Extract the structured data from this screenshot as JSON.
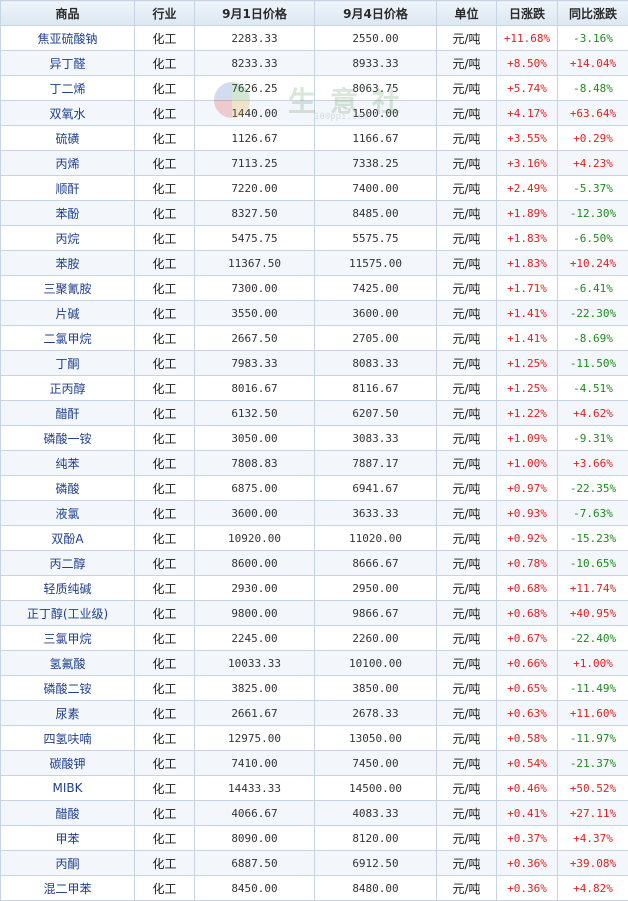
{
  "columns": [
    "商品",
    "行业",
    "9月1日价格",
    "9月4日价格",
    "单位",
    "日涨跌",
    "同比涨跌"
  ],
  "watermark": {
    "text": "生意社",
    "url": "100ppi.com"
  },
  "rows": [
    {
      "name": "焦亚硫酸钠",
      "industry": "化工",
      "price_0901": "2283.33",
      "price_0904": "2550.00",
      "unit": "元/吨",
      "daily_change": "+11.68%",
      "yoy_change": "-3.16%"
    },
    {
      "name": "异丁醛",
      "industry": "化工",
      "price_0901": "8233.33",
      "price_0904": "8933.33",
      "unit": "元/吨",
      "daily_change": "+8.50%",
      "yoy_change": "+14.04%"
    },
    {
      "name": "丁二烯",
      "industry": "化工",
      "price_0901": "7626.25",
      "price_0904": "8063.75",
      "unit": "元/吨",
      "daily_change": "+5.74%",
      "yoy_change": "-8.48%"
    },
    {
      "name": "双氧水",
      "industry": "化工",
      "price_0901": "1440.00",
      "price_0904": "1500.00",
      "unit": "元/吨",
      "daily_change": "+4.17%",
      "yoy_change": "+63.64%"
    },
    {
      "name": "硫磺",
      "industry": "化工",
      "price_0901": "1126.67",
      "price_0904": "1166.67",
      "unit": "元/吨",
      "daily_change": "+3.55%",
      "yoy_change": "+0.29%"
    },
    {
      "name": "丙烯",
      "industry": "化工",
      "price_0901": "7113.25",
      "price_0904": "7338.25",
      "unit": "元/吨",
      "daily_change": "+3.16%",
      "yoy_change": "+4.23%"
    },
    {
      "name": "顺酐",
      "industry": "化工",
      "price_0901": "7220.00",
      "price_0904": "7400.00",
      "unit": "元/吨",
      "daily_change": "+2.49%",
      "yoy_change": "-5.37%"
    },
    {
      "name": "苯酚",
      "industry": "化工",
      "price_0901": "8327.50",
      "price_0904": "8485.00",
      "unit": "元/吨",
      "daily_change": "+1.89%",
      "yoy_change": "-12.30%"
    },
    {
      "name": "丙烷",
      "industry": "化工",
      "price_0901": "5475.75",
      "price_0904": "5575.75",
      "unit": "元/吨",
      "daily_change": "+1.83%",
      "yoy_change": "-6.50%"
    },
    {
      "name": "苯胺",
      "industry": "化工",
      "price_0901": "11367.50",
      "price_0904": "11575.00",
      "unit": "元/吨",
      "daily_change": "+1.83%",
      "yoy_change": "+10.24%"
    },
    {
      "name": "三聚氰胺",
      "industry": "化工",
      "price_0901": "7300.00",
      "price_0904": "7425.00",
      "unit": "元/吨",
      "daily_change": "+1.71%",
      "yoy_change": "-6.41%"
    },
    {
      "name": "片碱",
      "industry": "化工",
      "price_0901": "3550.00",
      "price_0904": "3600.00",
      "unit": "元/吨",
      "daily_change": "+1.41%",
      "yoy_change": "-22.30%"
    },
    {
      "name": "二氯甲烷",
      "industry": "化工",
      "price_0901": "2667.50",
      "price_0904": "2705.00",
      "unit": "元/吨",
      "daily_change": "+1.41%",
      "yoy_change": "-8.69%"
    },
    {
      "name": "丁酮",
      "industry": "化工",
      "price_0901": "7983.33",
      "price_0904": "8083.33",
      "unit": "元/吨",
      "daily_change": "+1.25%",
      "yoy_change": "-11.50%"
    },
    {
      "name": "正丙醇",
      "industry": "化工",
      "price_0901": "8016.67",
      "price_0904": "8116.67",
      "unit": "元/吨",
      "daily_change": "+1.25%",
      "yoy_change": "-4.51%"
    },
    {
      "name": "醋酐",
      "industry": "化工",
      "price_0901": "6132.50",
      "price_0904": "6207.50",
      "unit": "元/吨",
      "daily_change": "+1.22%",
      "yoy_change": "+4.62%"
    },
    {
      "name": "磷酸一铵",
      "industry": "化工",
      "price_0901": "3050.00",
      "price_0904": "3083.33",
      "unit": "元/吨",
      "daily_change": "+1.09%",
      "yoy_change": "-9.31%"
    },
    {
      "name": "纯苯",
      "industry": "化工",
      "price_0901": "7808.83",
      "price_0904": "7887.17",
      "unit": "元/吨",
      "daily_change": "+1.00%",
      "yoy_change": "+3.66%"
    },
    {
      "name": "磷酸",
      "industry": "化工",
      "price_0901": "6875.00",
      "price_0904": "6941.67",
      "unit": "元/吨",
      "daily_change": "+0.97%",
      "yoy_change": "-22.35%"
    },
    {
      "name": "液氯",
      "industry": "化工",
      "price_0901": "3600.00",
      "price_0904": "3633.33",
      "unit": "元/吨",
      "daily_change": "+0.93%",
      "yoy_change": "-7.63%"
    },
    {
      "name": "双酚A",
      "industry": "化工",
      "price_0901": "10920.00",
      "price_0904": "11020.00",
      "unit": "元/吨",
      "daily_change": "+0.92%",
      "yoy_change": "-15.23%"
    },
    {
      "name": "丙二醇",
      "industry": "化工",
      "price_0901": "8600.00",
      "price_0904": "8666.67",
      "unit": "元/吨",
      "daily_change": "+0.78%",
      "yoy_change": "-10.65%"
    },
    {
      "name": "轻质纯碱",
      "industry": "化工",
      "price_0901": "2930.00",
      "price_0904": "2950.00",
      "unit": "元/吨",
      "daily_change": "+0.68%",
      "yoy_change": "+11.74%"
    },
    {
      "name": "正丁醇(工业级)",
      "industry": "化工",
      "price_0901": "9800.00",
      "price_0904": "9866.67",
      "unit": "元/吨",
      "daily_change": "+0.68%",
      "yoy_change": "+40.95%"
    },
    {
      "name": "三氯甲烷",
      "industry": "化工",
      "price_0901": "2245.00",
      "price_0904": "2260.00",
      "unit": "元/吨",
      "daily_change": "+0.67%",
      "yoy_change": "-22.40%"
    },
    {
      "name": "氢氟酸",
      "industry": "化工",
      "price_0901": "10033.33",
      "price_0904": "10100.00",
      "unit": "元/吨",
      "daily_change": "+0.66%",
      "yoy_change": "+1.00%"
    },
    {
      "name": "磷酸二铵",
      "industry": "化工",
      "price_0901": "3825.00",
      "price_0904": "3850.00",
      "unit": "元/吨",
      "daily_change": "+0.65%",
      "yoy_change": "-11.49%"
    },
    {
      "name": "尿素",
      "industry": "化工",
      "price_0901": "2661.67",
      "price_0904": "2678.33",
      "unit": "元/吨",
      "daily_change": "+0.63%",
      "yoy_change": "+11.60%"
    },
    {
      "name": "四氢呋喃",
      "industry": "化工",
      "price_0901": "12975.00",
      "price_0904": "13050.00",
      "unit": "元/吨",
      "daily_change": "+0.58%",
      "yoy_change": "-11.97%"
    },
    {
      "name": "碳酸钾",
      "industry": "化工",
      "price_0901": "7410.00",
      "price_0904": "7450.00",
      "unit": "元/吨",
      "daily_change": "+0.54%",
      "yoy_change": "-21.37%"
    },
    {
      "name": "MIBK",
      "industry": "化工",
      "price_0901": "14433.33",
      "price_0904": "14500.00",
      "unit": "元/吨",
      "daily_change": "+0.46%",
      "yoy_change": "+50.52%"
    },
    {
      "name": "醋酸",
      "industry": "化工",
      "price_0901": "4066.67",
      "price_0904": "4083.33",
      "unit": "元/吨",
      "daily_change": "+0.41%",
      "yoy_change": "+27.11%"
    },
    {
      "name": "甲苯",
      "industry": "化工",
      "price_0901": "8090.00",
      "price_0904": "8120.00",
      "unit": "元/吨",
      "daily_change": "+0.37%",
      "yoy_change": "+4.37%"
    },
    {
      "name": "丙酮",
      "industry": "化工",
      "price_0901": "6887.50",
      "price_0904": "6912.50",
      "unit": "元/吨",
      "daily_change": "+0.36%",
      "yoy_change": "+39.08%"
    },
    {
      "name": "混二甲苯",
      "industry": "化工",
      "price_0901": "8450.00",
      "price_0904": "8480.00",
      "unit": "元/吨",
      "daily_change": "+0.36%",
      "yoy_change": "+4.82%"
    }
  ]
}
